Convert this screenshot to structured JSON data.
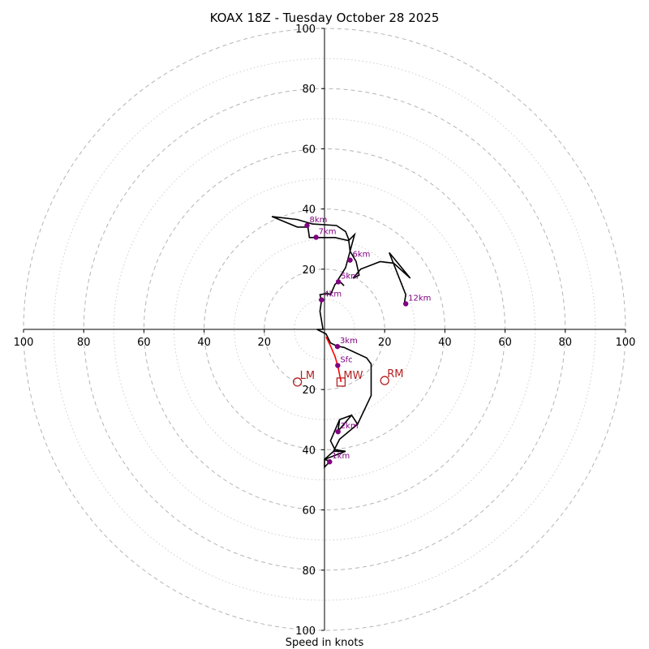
{
  "chart_data": {
    "type": "hodograph",
    "title": "KOAX 18Z - Tuesday October 28 2025",
    "xlabel": "Speed in knots",
    "range": [
      -100,
      100
    ],
    "major_rings": [
      20,
      40,
      60,
      80,
      100
    ],
    "minor_rings": [
      10,
      30,
      50,
      70,
      90
    ],
    "x_ticks": [
      -100,
      -80,
      -60,
      -40,
      -20,
      20,
      40,
      60,
      80,
      100
    ],
    "x_tick_labels": [
      "100",
      "80",
      "60",
      "40",
      "20",
      "20",
      "40",
      "60",
      "80",
      "100"
    ],
    "y_ticks": [
      100,
      80,
      60,
      40,
      20,
      -20,
      -40,
      -60,
      -80,
      -100
    ],
    "y_tick_labels": [
      "100",
      "80",
      "60",
      "40",
      "20",
      "20",
      "40",
      "60",
      "80",
      "100"
    ],
    "hodograph": [
      [
        0,
        -45.8
      ],
      [
        0,
        -43.2
      ],
      [
        7,
        -40.5
      ],
      [
        3,
        -40.5
      ],
      [
        5,
        -36.5
      ],
      [
        11,
        -31.5
      ],
      [
        9,
        -28.5
      ],
      [
        5,
        -30
      ],
      [
        2,
        -37
      ],
      [
        3.5,
        -40
      ],
      [
        7,
        -40.5
      ],
      [
        3,
        -40.5
      ],
      [
        0,
        -43.2
      ],
      [
        0,
        -45.8
      ],
      [
        0,
        -43.2
      ],
      [
        2,
        -43.8
      ],
      [
        1.7,
        -44
      ],
      [
        0,
        -45.8
      ],
      [
        0,
        -43.2
      ],
      [
        7,
        -40.5
      ],
      [
        3,
        -40.5
      ],
      [
        5,
        -36.5
      ],
      [
        11,
        -31.5
      ],
      [
        9,
        -28.5
      ],
      [
        5,
        -30
      ],
      [
        4.5,
        -33.8
      ],
      [
        9,
        -28.5
      ],
      [
        11,
        -31.5
      ],
      [
        15.5,
        -22
      ],
      [
        15.5,
        -11.5
      ],
      [
        14,
        -9.5
      ],
      [
        6.5,
        -6
      ],
      [
        4,
        -5.5
      ],
      [
        2,
        -4.5
      ],
      [
        0.5,
        -1.5
      ],
      [
        -2.5,
        0
      ],
      [
        -0.5,
        0
      ],
      [
        -1,
        3
      ],
      [
        -1.5,
        6
      ],
      [
        -1,
        9.5
      ],
      [
        -1.5,
        11.5
      ],
      [
        1,
        12
      ],
      [
        2,
        11.5
      ],
      [
        3.5,
        15
      ],
      [
        5,
        16
      ],
      [
        6.5,
        14.5
      ],
      [
        4.5,
        16.5
      ],
      [
        7,
        20.5
      ],
      [
        10,
        31.5
      ],
      [
        8,
        29.5
      ],
      [
        3.5,
        30.5
      ],
      [
        -5,
        30.5
      ],
      [
        -5.5,
        34
      ],
      [
        -9,
        34
      ],
      [
        -17.5,
        37.5
      ],
      [
        -9,
        36.5
      ],
      [
        -4,
        35
      ],
      [
        4,
        34.5
      ],
      [
        7,
        32.5
      ],
      [
        8,
        30
      ],
      [
        8.5,
        26
      ],
      [
        10.5,
        22.5
      ],
      [
        11.5,
        18
      ],
      [
        9.5,
        17
      ],
      [
        12,
        20
      ],
      [
        18.5,
        22.5
      ],
      [
        23,
        22
      ],
      [
        28.5,
        17
      ],
      [
        21.5,
        25.5
      ],
      [
        27,
        11.5
      ],
      [
        26.5,
        8.5
      ]
    ],
    "height_labels": [
      {
        "label": "1km",
        "u": 1.7,
        "v": -44
      },
      {
        "label": "2km",
        "u": 4.5,
        "v": -34
      },
      {
        "label": "Sfc",
        "u": 4.4,
        "v": -12
      },
      {
        "label": "3km",
        "u": 4.3,
        "v": -5.7
      },
      {
        "label": "4km",
        "u": -1,
        "v": 9.8
      },
      {
        "label": "5km",
        "u": 4.6,
        "v": 15.8
      },
      {
        "label": "6km",
        "u": 8.5,
        "v": 23
      },
      {
        "label": "7km",
        "u": -2.8,
        "v": 30.6
      },
      {
        "label": "8km",
        "u": -5.8,
        "v": 34.5
      },
      {
        "label": "12km",
        "u": 27,
        "v": 8.5
      }
    ],
    "storm_motion": [
      {
        "label": "LM",
        "u": -9,
        "v": -17.5,
        "marker": "circle"
      },
      {
        "label": "MW",
        "u": 5.5,
        "v": -17.5,
        "marker": "square"
      },
      {
        "label": "RM",
        "u": 20,
        "v": -17,
        "marker": "circle"
      }
    ],
    "shear_vector": [
      [
        0.5,
        -2.5
      ],
      [
        2,
        -5.5
      ],
      [
        3.5,
        -9
      ],
      [
        4.5,
        -12.5
      ],
      [
        5.5,
        -17.5
      ]
    ],
    "colors": {
      "profile": "#000000",
      "points": "#800080",
      "motion": "#b22222",
      "shear": "#ff0000"
    }
  }
}
